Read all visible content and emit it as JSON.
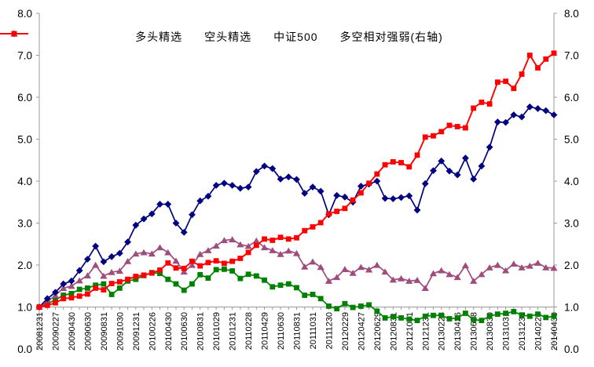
{
  "chart_data": {
    "type": "line",
    "title": "",
    "n_points": 65,
    "x_tick_every": 2,
    "x_tick_labels": [
      "20081231",
      "20090227",
      "20090430",
      "20090630",
      "20090831",
      "20091030",
      "20091231",
      "20100226",
      "20100430",
      "20100630",
      "20100831",
      "20101029",
      "20101231",
      "20110228",
      "20110429",
      "20110630",
      "20110831",
      "20111031",
      "20111230",
      "20120229",
      "20120427",
      "20120629",
      "20120831",
      "20121031",
      "20121231",
      "20130228",
      "20130426",
      "20130628",
      "20130830",
      "20131031",
      "20131231",
      "20140228",
      "20140430"
    ],
    "y_axis_left": {
      "min": 0,
      "max": 8,
      "step": 1,
      "tick_labels": [
        "0.0",
        "1.0",
        "2.0",
        "3.0",
        "4.0",
        "5.0",
        "6.0",
        "7.0",
        "8.0"
      ]
    },
    "y_axis_right": {
      "min": 0,
      "max": 8,
      "step": 1,
      "tick_labels": [
        "0.0",
        "1.0",
        "2.0",
        "3.0",
        "4.0",
        "5.0",
        "6.0",
        "7.0",
        "8.0"
      ]
    },
    "category_axis_cross_value": 1.0,
    "grid": "off",
    "legend_position": "top-center",
    "series": [
      {
        "name": "多头精选",
        "axis": "left",
        "color": "#000080",
        "marker": "diamond",
        "values": [
          1.0,
          1.2,
          1.35,
          1.55,
          1.62,
          1.87,
          2.14,
          2.45,
          2.08,
          2.2,
          2.28,
          2.55,
          2.95,
          3.1,
          3.22,
          3.45,
          3.45,
          3.0,
          2.78,
          3.2,
          3.53,
          3.64,
          3.9,
          3.95,
          3.9,
          3.83,
          3.86,
          4.23,
          4.36,
          4.3,
          4.05,
          4.1,
          4.04,
          3.71,
          3.86,
          3.76,
          3.2,
          3.66,
          3.62,
          3.5,
          3.88,
          3.93,
          4.0,
          3.59,
          3.58,
          3.61,
          3.65,
          3.31,
          3.94,
          4.25,
          4.48,
          4.24,
          4.15,
          4.55,
          4.05,
          4.36,
          4.81,
          5.41,
          5.4,
          5.58,
          5.53,
          5.77,
          5.73,
          5.68,
          5.58
        ]
      },
      {
        "name": "空头精选",
        "axis": "left",
        "color": "#008000",
        "marker": "square",
        "values": [
          1.0,
          1.08,
          1.17,
          1.28,
          1.32,
          1.42,
          1.45,
          1.52,
          1.55,
          1.3,
          1.45,
          1.62,
          1.66,
          1.75,
          1.82,
          1.8,
          1.66,
          1.55,
          1.4,
          1.55,
          1.77,
          1.69,
          1.89,
          1.9,
          1.86,
          1.68,
          1.78,
          1.74,
          1.64,
          1.48,
          1.52,
          1.55,
          1.46,
          1.28,
          1.3,
          1.2,
          1.02,
          0.96,
          1.08,
          0.99,
          1.02,
          1.05,
          0.9,
          0.74,
          0.77,
          0.74,
          0.71,
          0.68,
          0.78,
          0.8,
          0.8,
          0.72,
          0.74,
          0.85,
          0.7,
          0.68,
          0.78,
          0.83,
          0.85,
          0.89,
          0.81,
          0.78,
          0.83,
          0.75,
          0.78
        ]
      },
      {
        "name": "中证500",
        "axis": "left",
        "color": "#9E4D7D",
        "marker": "triangle",
        "values": [
          1.0,
          1.12,
          1.28,
          1.45,
          1.5,
          1.63,
          1.75,
          2.0,
          1.74,
          1.83,
          1.86,
          2.09,
          2.27,
          2.3,
          2.27,
          2.42,
          2.3,
          2.1,
          1.84,
          2.0,
          2.26,
          2.35,
          2.46,
          2.59,
          2.61,
          2.49,
          2.45,
          2.58,
          2.42,
          2.35,
          2.26,
          2.34,
          2.28,
          1.96,
          2.08,
          1.95,
          1.62,
          1.71,
          1.9,
          1.81,
          1.95,
          1.89,
          2.0,
          1.84,
          1.65,
          1.68,
          1.62,
          1.64,
          1.45,
          1.8,
          1.87,
          1.78,
          1.71,
          1.99,
          1.62,
          1.78,
          1.94,
          2.0,
          1.87,
          2.03,
          1.94,
          1.98,
          2.05,
          1.94,
          1.93
        ]
      },
      {
        "name": "多空相对强弱(右轴)",
        "axis": "right",
        "color": "#FF0000",
        "marker": "square",
        "values": [
          1.0,
          1.04,
          1.1,
          1.2,
          1.22,
          1.26,
          1.31,
          1.45,
          1.41,
          1.56,
          1.6,
          1.66,
          1.73,
          1.76,
          1.81,
          1.88,
          2.05,
          1.93,
          1.92,
          2.09,
          1.98,
          2.06,
          2.1,
          2.04,
          2.09,
          2.16,
          2.3,
          2.47,
          2.62,
          2.59,
          2.66,
          2.62,
          2.65,
          2.82,
          2.91,
          3.01,
          3.22,
          3.28,
          3.35,
          3.55,
          3.72,
          3.95,
          4.17,
          4.39,
          4.46,
          4.44,
          4.34,
          4.62,
          5.05,
          5.08,
          5.18,
          5.33,
          5.3,
          5.27,
          5.74,
          5.88,
          5.84,
          6.36,
          6.38,
          6.21,
          6.55,
          7.0,
          6.7,
          6.91,
          7.05
        ]
      }
    ]
  }
}
